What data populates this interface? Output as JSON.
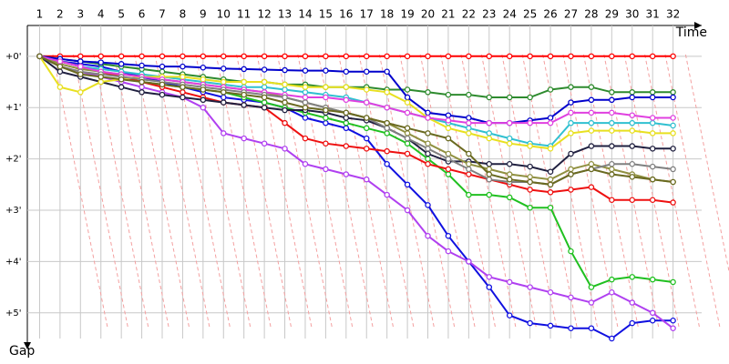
{
  "chart_data": {
    "type": "line",
    "x_label": "Time",
    "y_label": "Gap",
    "x": [
      1,
      2,
      3,
      4,
      5,
      6,
      7,
      8,
      9,
      10,
      11,
      12,
      13,
      14,
      15,
      16,
      17,
      18,
      19,
      20,
      21,
      22,
      23,
      24,
      25,
      26,
      27,
      28,
      29,
      30,
      31,
      32
    ],
    "xlim": [
      0.4,
      33.4
    ],
    "xticks": [
      1,
      2,
      3,
      4,
      5,
      6,
      7,
      8,
      9,
      10,
      11,
      12,
      13,
      14,
      15,
      16,
      17,
      18,
      19,
      20,
      21,
      22,
      23,
      24,
      25,
      26,
      27,
      28,
      29,
      30,
      31,
      32
    ],
    "ylim": [
      -0.6,
      5.5
    ],
    "y_inverted": true,
    "yticks": [
      {
        "value": 0,
        "label": "+0'"
      },
      {
        "value": 1,
        "label": "+1'"
      },
      {
        "value": 2,
        "label": "+2'"
      },
      {
        "value": 3,
        "label": "+3'"
      },
      {
        "value": 4,
        "label": "+4'"
      },
      {
        "value": 5,
        "label": "+5'"
      }
    ],
    "grid": true,
    "series": [
      {
        "color": "#ff0000",
        "values": [
          0,
          0,
          0,
          0,
          0,
          0,
          0,
          0,
          0,
          0,
          0,
          0,
          0,
          0,
          0,
          0,
          0,
          0,
          0,
          0,
          0,
          0,
          0,
          0,
          0,
          0,
          0,
          0,
          0,
          0,
          0,
          0
        ]
      },
      {
        "color": "#1010e0",
        "values": [
          0,
          0.1,
          0.15,
          0.2,
          0.3,
          0.4,
          0.5,
          0.6,
          0.7,
          0.8,
          0.85,
          0.9,
          1.0,
          1.2,
          1.3,
          1.4,
          1.6,
          2.1,
          2.5,
          2.9,
          3.5,
          4.0,
          4.5,
          5.05,
          5.2,
          5.25,
          5.3,
          5.3,
          5.5,
          5.2,
          5.15,
          5.15
        ]
      },
      {
        "color": "#b040f0",
        "values": [
          0,
          0.2,
          0.3,
          0.4,
          0.5,
          0.6,
          0.7,
          0.8,
          1.0,
          1.5,
          1.6,
          1.7,
          1.8,
          2.1,
          2.2,
          2.3,
          2.4,
          2.7,
          3.0,
          3.5,
          3.8,
          4.0,
          4.3,
          4.4,
          4.5,
          4.6,
          4.7,
          4.8,
          4.6,
          4.8,
          5.0,
          5.3
        ]
      },
      {
        "color": "#20c020",
        "values": [
          0,
          0.1,
          0.2,
          0.3,
          0.4,
          0.5,
          0.55,
          0.6,
          0.65,
          0.7,
          0.8,
          0.9,
          1.0,
          1.1,
          1.2,
          1.3,
          1.4,
          1.5,
          1.7,
          2.0,
          2.3,
          2.7,
          2.7,
          2.75,
          2.95,
          2.95,
          3.8,
          4.5,
          4.35,
          4.3,
          4.35,
          4.4
        ]
      },
      {
        "color": "#ee1010",
        "values": [
          0,
          0.1,
          0.2,
          0.3,
          0.4,
          0.5,
          0.6,
          0.7,
          0.8,
          0.9,
          0.95,
          1.0,
          1.3,
          1.6,
          1.7,
          1.75,
          1.8,
          1.85,
          1.9,
          2.1,
          2.2,
          2.3,
          2.4,
          2.5,
          2.6,
          2.65,
          2.6,
          2.55,
          2.8,
          2.8,
          2.8,
          2.85
        ]
      },
      {
        "color": "#2e8b2e",
        "values": [
          0,
          0.05,
          0.1,
          0.15,
          0.2,
          0.25,
          0.3,
          0.35,
          0.4,
          0.45,
          0.5,
          0.5,
          0.55,
          0.55,
          0.6,
          0.6,
          0.6,
          0.65,
          0.65,
          0.7,
          0.75,
          0.75,
          0.8,
          0.8,
          0.8,
          0.65,
          0.6,
          0.6,
          0.7,
          0.7,
          0.7,
          0.7
        ]
      },
      {
        "color": "#0000cc",
        "values": [
          0,
          0.05,
          0.1,
          0.12,
          0.15,
          0.18,
          0.2,
          0.2,
          0.22,
          0.24,
          0.25,
          0.26,
          0.27,
          0.28,
          0.28,
          0.3,
          0.3,
          0.3,
          0.8,
          1.1,
          1.15,
          1.2,
          1.3,
          1.3,
          1.25,
          1.2,
          0.9,
          0.85,
          0.85,
          0.8,
          0.8,
          0.8
        ]
      },
      {
        "color": "#202040",
        "values": [
          0,
          0.3,
          0.4,
          0.5,
          0.6,
          0.7,
          0.75,
          0.8,
          0.85,
          0.9,
          0.95,
          1.0,
          1.05,
          1.05,
          1.1,
          1.2,
          1.25,
          1.4,
          1.6,
          1.9,
          2.05,
          2.05,
          2.1,
          2.1,
          2.15,
          2.25,
          1.9,
          1.75,
          1.75,
          1.75,
          1.8,
          1.8
        ]
      },
      {
        "color": "#30c0d0",
        "values": [
          0,
          0.1,
          0.2,
          0.25,
          0.3,
          0.35,
          0.4,
          0.45,
          0.5,
          0.55,
          0.6,
          0.6,
          0.65,
          0.7,
          0.75,
          0.8,
          0.9,
          1.0,
          1.1,
          1.2,
          1.3,
          1.4,
          1.5,
          1.6,
          1.7,
          1.75,
          1.3,
          1.3,
          1.3,
          1.3,
          1.3,
          1.35
        ]
      },
      {
        "color": "#909040",
        "values": [
          0,
          0.15,
          0.25,
          0.3,
          0.35,
          0.4,
          0.45,
          0.5,
          0.55,
          0.6,
          0.65,
          0.7,
          0.8,
          0.9,
          1.0,
          1.1,
          1.2,
          1.3,
          1.5,
          1.7,
          1.9,
          2.1,
          2.2,
          2.3,
          2.35,
          2.4,
          2.2,
          2.1,
          2.2,
          2.3,
          2.4,
          2.45
        ]
      },
      {
        "color": "#e8e020",
        "values": [
          0,
          0.6,
          0.7,
          0.5,
          0.45,
          0.4,
          0.4,
          0.4,
          0.45,
          0.5,
          0.5,
          0.5,
          0.55,
          0.6,
          0.6,
          0.6,
          0.65,
          0.7,
          0.9,
          1.2,
          1.4,
          1.5,
          1.6,
          1.7,
          1.75,
          1.8,
          1.5,
          1.45,
          1.45,
          1.45,
          1.5,
          1.5
        ]
      },
      {
        "color": "#e040e0",
        "values": [
          0,
          0.1,
          0.2,
          0.3,
          0.35,
          0.4,
          0.45,
          0.5,
          0.55,
          0.6,
          0.65,
          0.7,
          0.75,
          0.8,
          0.8,
          0.85,
          0.9,
          1.0,
          1.1,
          1.2,
          1.25,
          1.3,
          1.3,
          1.3,
          1.3,
          1.3,
          1.1,
          1.1,
          1.1,
          1.15,
          1.2,
          1.2
        ]
      },
      {
        "color": "#808080",
        "values": [
          0,
          0.2,
          0.3,
          0.35,
          0.4,
          0.45,
          0.5,
          0.55,
          0.6,
          0.65,
          0.7,
          0.75,
          0.8,
          0.9,
          1.0,
          1.1,
          1.2,
          1.4,
          1.6,
          1.8,
          2.0,
          2.2,
          2.4,
          2.45,
          2.45,
          2.5,
          2.3,
          2.2,
          2.1,
          2.1,
          2.15,
          2.2
        ]
      },
      {
        "color": "#6a6a20",
        "values": [
          0,
          0.2,
          0.35,
          0.4,
          0.45,
          0.5,
          0.55,
          0.6,
          0.65,
          0.7,
          0.75,
          0.8,
          0.9,
          1.0,
          1.05,
          1.1,
          1.2,
          1.3,
          1.4,
          1.5,
          1.6,
          1.9,
          2.3,
          2.4,
          2.45,
          2.5,
          2.3,
          2.2,
          2.3,
          2.35,
          2.4,
          2.45
        ]
      }
    ]
  }
}
